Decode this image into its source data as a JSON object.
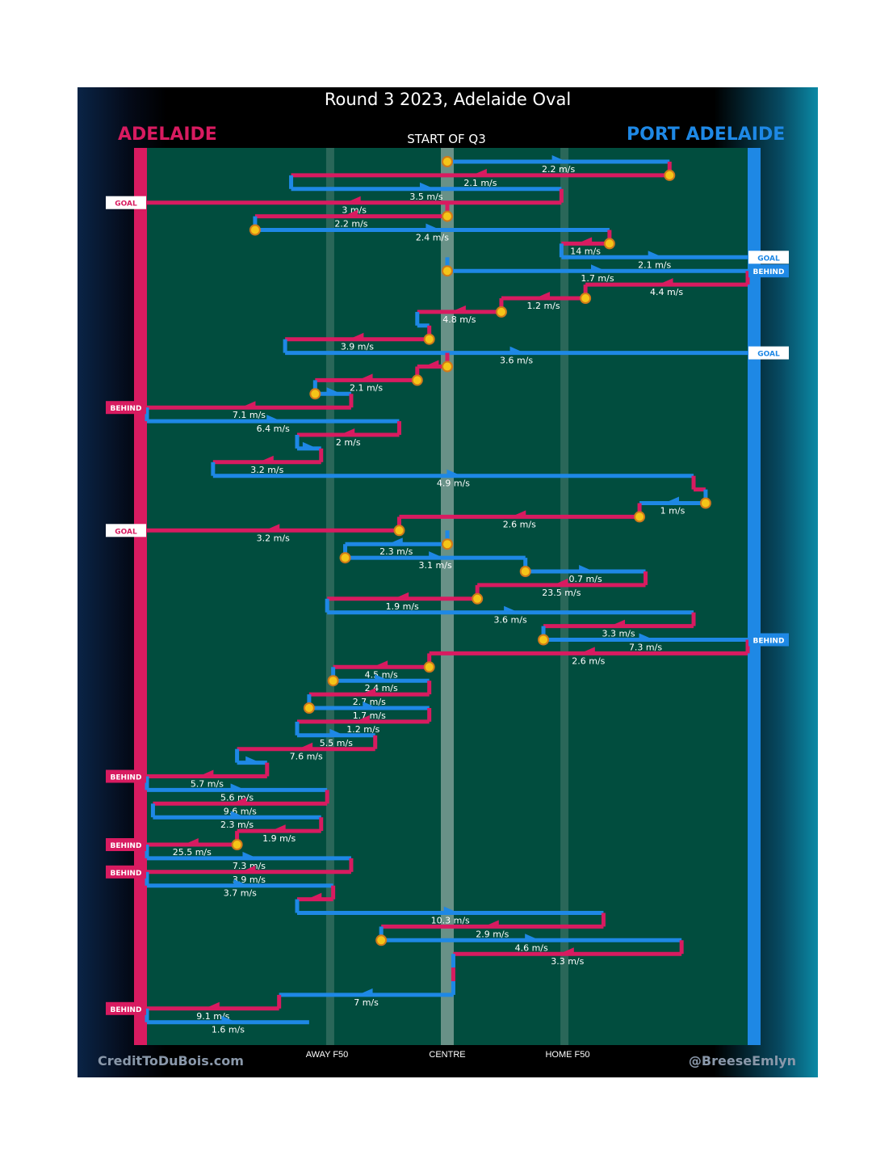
{
  "chart_data": {
    "type": "chain",
    "title": "Round 3 2023, Adelaide Oval",
    "subtitle": "START OF Q3",
    "home_team": "ADELAIDE",
    "away_team": "PORT ADELAIDE",
    "home_color": "#d81b60",
    "away_color": "#1e88e5",
    "field_color": "#014d3e",
    "x_labels": [
      "AWAY F50",
      "CENTRE",
      "HOME F50"
    ],
    "credit_left": "CreditToDuBois.com",
    "credit_right": "@BreeseEmlyn",
    "x_axis_note": "x measured in percent of field length: 0 = Adelaide goal line, 100 = Port Adelaide goal line",
    "possessions": [
      {
        "team": "away",
        "from": 50,
        "to": 87,
        "speed": "2.2 m/s",
        "start": "stoppage"
      },
      {
        "team": "home",
        "from": 87,
        "to": 24,
        "speed": "2.1 m/s",
        "start": "stoppage"
      },
      {
        "team": "away",
        "from": 24,
        "to": 69,
        "speed": "3.5 m/s"
      },
      {
        "team": "home",
        "from": 69,
        "to": 0,
        "speed": "3 m/s",
        "end": "GOAL"
      },
      {
        "team": "home",
        "from": 50,
        "to": 18,
        "speed": "2.2 m/s",
        "start": "stoppage"
      },
      {
        "team": "away",
        "from": 18,
        "to": 77,
        "speed": "2.4 m/s",
        "start": "stoppage"
      },
      {
        "team": "home",
        "from": 77,
        "to": 69,
        "speed": "14 m/s",
        "start": "stoppage"
      },
      {
        "team": "away",
        "from": 69,
        "to": 100,
        "speed": "2.1 m/s",
        "end": "GOAL"
      },
      {
        "team": "away",
        "from": 50,
        "to": 100,
        "speed": "1.7 m/s",
        "start": "stoppage",
        "end": "BEHIND"
      },
      {
        "team": "home",
        "from": 100,
        "to": 73,
        "speed": "4.4 m/s"
      },
      {
        "team": "home",
        "from": 73,
        "to": 59,
        "speed": "1.2 m/s",
        "start": "stoppage"
      },
      {
        "team": "home",
        "from": 59,
        "to": 45,
        "speed": "4.8 m/s",
        "start": "stoppage"
      },
      {
        "team": "away",
        "from": 45,
        "to": 47,
        "speed": ""
      },
      {
        "team": "home",
        "from": 47,
        "to": 23,
        "speed": "3.9 m/s",
        "start": "stoppage"
      },
      {
        "team": "away",
        "from": 23,
        "to": 100,
        "speed": "3.6 m/s",
        "end": "GOAL"
      },
      {
        "team": "home",
        "from": 50,
        "to": 45,
        "speed": "",
        "start": "stoppage"
      },
      {
        "team": "home",
        "from": 45,
        "to": 28,
        "speed": "2.1 m/s",
        "start": "stoppage"
      },
      {
        "team": "away",
        "from": 28,
        "to": 34,
        "speed": "",
        "start": "stoppage"
      },
      {
        "team": "home",
        "from": 34,
        "to": 0,
        "speed": "7.1 m/s",
        "end": "BEHIND"
      },
      {
        "team": "away",
        "from": 0,
        "to": 42,
        "speed": "6.4 m/s"
      },
      {
        "team": "home",
        "from": 42,
        "to": 25,
        "speed": "2 m/s"
      },
      {
        "team": "away",
        "from": 25,
        "to": 29,
        "speed": ""
      },
      {
        "team": "home",
        "from": 29,
        "to": 11,
        "speed": "3.2 m/s"
      },
      {
        "team": "away",
        "from": 11,
        "to": 91,
        "speed": "4.9 m/s"
      },
      {
        "team": "home",
        "from": 91,
        "to": 93,
        "speed": ""
      },
      {
        "team": "away",
        "from": 93,
        "to": 82,
        "speed": "1 m/s",
        "start": "stoppage"
      },
      {
        "team": "home",
        "from": 82,
        "to": 42,
        "speed": "2.6 m/s",
        "start": "stoppage"
      },
      {
        "team": "home",
        "from": 42,
        "to": 0,
        "speed": "3.2 m/s",
        "start": "stoppage",
        "end": "GOAL"
      },
      {
        "team": "away",
        "from": 50,
        "to": 33,
        "speed": "2.3 m/s",
        "start": "stoppage"
      },
      {
        "team": "away",
        "from": 33,
        "to": 63,
        "speed": "3.1 m/s",
        "start": "stoppage"
      },
      {
        "team": "away",
        "from": 63,
        "to": 83,
        "speed": "0.7 m/s",
        "start": "stoppage"
      },
      {
        "team": "home",
        "from": 83,
        "to": 55,
        "speed": "23.5 m/s"
      },
      {
        "team": "home",
        "from": 55,
        "to": 30,
        "speed": "1.9 m/s",
        "start": "stoppage"
      },
      {
        "team": "away",
        "from": 30,
        "to": 91,
        "speed": "3.6 m/s"
      },
      {
        "team": "home",
        "from": 91,
        "to": 66,
        "speed": "3.3 m/s"
      },
      {
        "team": "away",
        "from": 66,
        "to": 100,
        "speed": "7.3 m/s",
        "start": "stoppage",
        "end": "BEHIND"
      },
      {
        "team": "home",
        "from": 100,
        "to": 47,
        "speed": "2.6 m/s"
      },
      {
        "team": "home",
        "from": 47,
        "to": 31,
        "speed": "4.5 m/s",
        "start": "stoppage"
      },
      {
        "team": "away",
        "from": 31,
        "to": 47,
        "speed": "2.4 m/s",
        "start": "stoppage"
      },
      {
        "team": "home",
        "from": 47,
        "to": 27,
        "speed": "2.7 m/s"
      },
      {
        "team": "away",
        "from": 27,
        "to": 47,
        "speed": "1.7 m/s",
        "start": "stoppage"
      },
      {
        "team": "home",
        "from": 47,
        "to": 25,
        "speed": "1.2 m/s"
      },
      {
        "team": "away",
        "from": 25,
        "to": 38,
        "speed": "5.5 m/s"
      },
      {
        "team": "home",
        "from": 38,
        "to": 15,
        "speed": "7.6 m/s"
      },
      {
        "team": "away",
        "from": 15,
        "to": 20,
        "speed": ""
      },
      {
        "team": "home",
        "from": 20,
        "to": 0,
        "speed": "5.7 m/s",
        "end": "BEHIND"
      },
      {
        "team": "away",
        "from": 0,
        "to": 30,
        "speed": "5.6 m/s"
      },
      {
        "team": "home",
        "from": 30,
        "to": 1,
        "speed": "9.6 m/s"
      },
      {
        "team": "away",
        "from": 1,
        "to": 29,
        "speed": "2.3 m/s"
      },
      {
        "team": "home",
        "from": 29,
        "to": 15,
        "speed": "1.9 m/s"
      },
      {
        "team": "home",
        "from": 15,
        "to": 0,
        "speed": "25.5 m/s",
        "start": "stoppage",
        "end": "BEHIND"
      },
      {
        "team": "away",
        "from": 0,
        "to": 34,
        "speed": "7.3 m/s"
      },
      {
        "team": "home",
        "from": 34,
        "to": 0,
        "speed": "3.9 m/s",
        "end": "BEHIND"
      },
      {
        "team": "away",
        "from": 0,
        "to": 31,
        "speed": "3.7 m/s"
      },
      {
        "team": "home",
        "from": 31,
        "to": 25,
        "speed": ""
      },
      {
        "team": "away",
        "from": 25,
        "to": 76,
        "speed": "10.3 m/s"
      },
      {
        "team": "home",
        "from": 76,
        "to": 39,
        "speed": "2.9 m/s"
      },
      {
        "team": "away",
        "from": 39,
        "to": 89,
        "speed": "4.6 m/s",
        "start": "stoppage"
      },
      {
        "team": "home",
        "from": 89,
        "to": 51,
        "speed": "3.3 m/s"
      },
      {
        "team": "away",
        "from": 51,
        "to": 51,
        "speed": ""
      },
      {
        "team": "home",
        "from": 51,
        "to": 51,
        "speed": ""
      },
      {
        "team": "away",
        "from": 51,
        "to": 22,
        "speed": "7 m/s"
      },
      {
        "team": "home",
        "from": 22,
        "to": 0,
        "speed": "9.1 m/s",
        "end": "BEHIND"
      },
      {
        "team": "away",
        "from": 0,
        "to": 27,
        "speed": "1.6 m/s"
      }
    ]
  }
}
